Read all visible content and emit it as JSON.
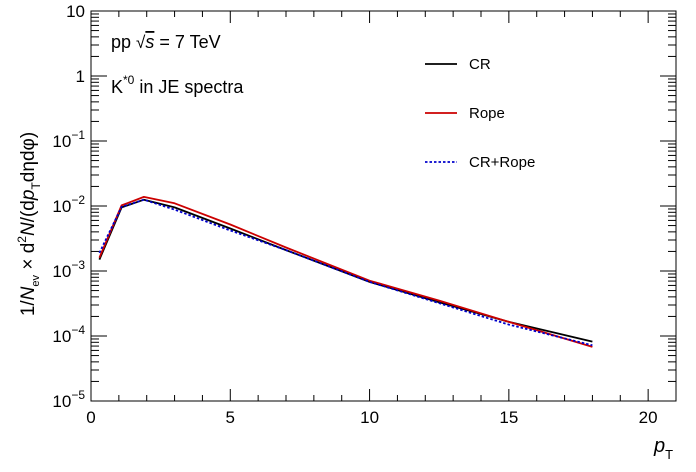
{
  "chart_data": {
    "type": "line",
    "xlabel": {
      "main": "p",
      "sub": "T"
    },
    "ylabel": {
      "p1": "1/",
      "p2": "N",
      "p3": "ev",
      "p4": " × d",
      "p5": "2",
      "p6": "N",
      "p7": "/(d",
      "p8": "p",
      "p9": "T",
      "p10": "dηdφ)"
    },
    "annotation": {
      "line1": {
        "a": "pp ",
        "sqrt": "√",
        "s": "s",
        "b": " = 7 TeV"
      },
      "line2": {
        "a": "K",
        "sup": "*0",
        "b": " in JE spectra"
      }
    },
    "xlim": [
      0,
      21
    ],
    "ylim": [
      1e-05,
      10
    ],
    "yscale": "log",
    "x_ticks": [
      {
        "value": 0,
        "label": "0"
      },
      {
        "value": 5,
        "label": "5"
      },
      {
        "value": 10,
        "label": "10"
      },
      {
        "value": 15,
        "label": "15"
      },
      {
        "value": 20,
        "label": "20"
      }
    ],
    "y_ticks": [
      {
        "value": 1e-05,
        "base": "10",
        "exp": "−5"
      },
      {
        "value": 0.0001,
        "base": "10",
        "exp": "−4"
      },
      {
        "value": 0.001,
        "base": "10",
        "exp": "−3"
      },
      {
        "value": 0.01,
        "base": "10",
        "exp": "−2"
      },
      {
        "value": 0.1,
        "base": "10",
        "exp": "−1"
      },
      {
        "value": 1,
        "base": "1",
        "exp": ""
      },
      {
        "value": 10,
        "base": "10",
        "exp": ""
      }
    ],
    "legend_position": "top-right",
    "series": [
      {
        "name": "CR",
        "color": "#000000",
        "dash": "solid",
        "x": [
          0.3,
          1.1,
          1.9,
          3.0,
          5.0,
          7.0,
          10.0,
          12.5,
          15.0,
          18.0
        ],
        "y": [
          0.0015,
          0.0095,
          0.0125,
          0.0095,
          0.0045,
          0.0021,
          0.00068,
          0.00033,
          0.000165,
          8.2e-05
        ]
      },
      {
        "name": "Rope",
        "color": "#cc0000",
        "dash": "solid",
        "x": [
          0.3,
          1.1,
          1.9,
          3.0,
          5.0,
          7.0,
          10.0,
          12.5,
          15.0,
          18.0
        ],
        "y": [
          0.0016,
          0.0102,
          0.0138,
          0.011,
          0.0052,
          0.0023,
          0.00071,
          0.00035,
          0.000165,
          6.8e-05
        ]
      },
      {
        "name": "CR+Rope",
        "color": "#0000cc",
        "dash": "dotted",
        "x": [
          0.3,
          1.1,
          1.9,
          3.0,
          5.0,
          7.0,
          10.0,
          12.5,
          15.0,
          18.0
        ],
        "y": [
          0.0019,
          0.0097,
          0.0125,
          0.0088,
          0.0042,
          0.0021,
          0.00068,
          0.00032,
          0.00015,
          7.2e-05
        ]
      }
    ]
  }
}
